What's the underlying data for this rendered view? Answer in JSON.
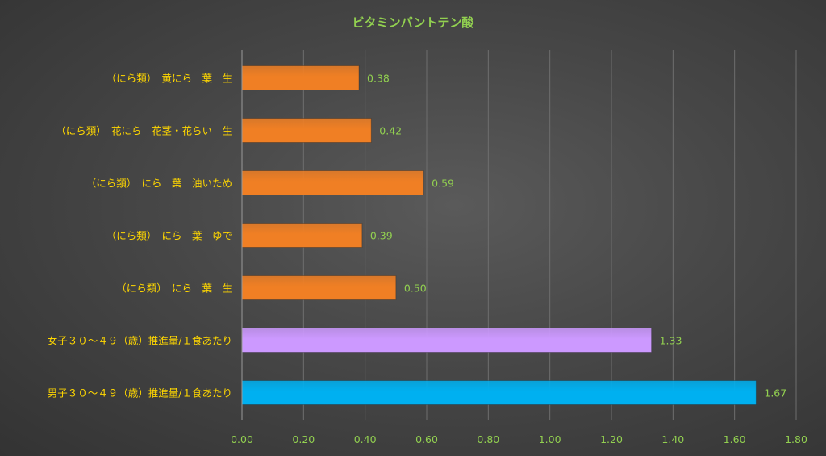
{
  "chart_data": {
    "type": "bar",
    "orientation": "horizontal",
    "title": "ビタミンパントテン酸",
    "categories": [
      "（にら類）　黄にら　葉　生",
      "（にら類）　花にら　花茎・花らい　生",
      "（にら類）　にら　葉　油いため",
      "（にら類）　にら　葉　ゆで",
      "（にら類）　にら　葉　生",
      "女子３０～４９（歳）推進量/１食あたり",
      "男子３０～４９（歳）推進量/１食あたり"
    ],
    "values": [
      0.38,
      0.42,
      0.59,
      0.39,
      0.5,
      1.33,
      1.67
    ],
    "value_labels": [
      "0.38",
      "0.42",
      "0.59",
      "0.39",
      "0.50",
      "1.33",
      "1.67"
    ],
    "colors": [
      "#f07f24",
      "#f07f24",
      "#f07f24",
      "#f07f24",
      "#f07f24",
      "#cc99ff",
      "#00b0f0"
    ],
    "xlim": [
      0,
      1.8
    ],
    "xticks": [
      "0.00",
      "0.20",
      "0.40",
      "0.60",
      "0.80",
      "1.00",
      "1.20",
      "1.40",
      "1.60",
      "1.80"
    ],
    "xlabel": "",
    "ylabel": "",
    "grid": "vertical"
  }
}
